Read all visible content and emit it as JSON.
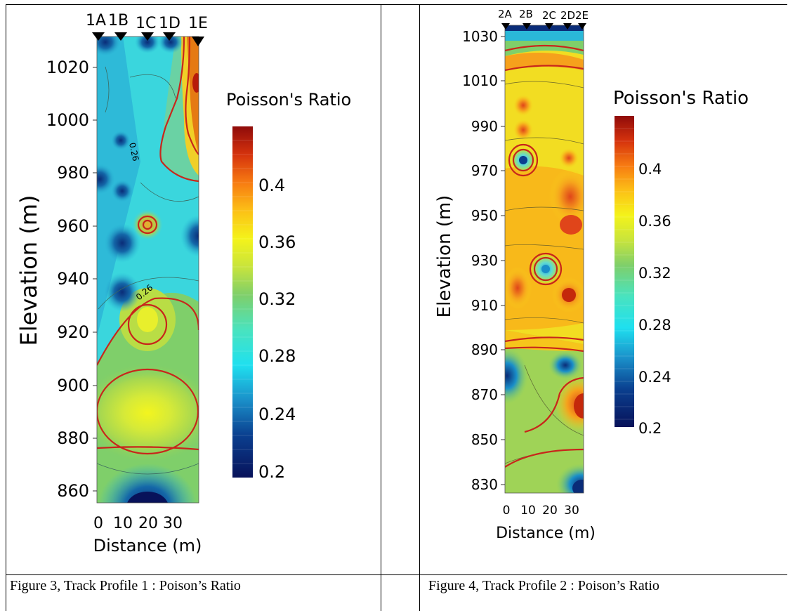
{
  "figures": [
    {
      "caption": "Figure 3, Track Profile 1 : Poison’s Ratio",
      "chart_data": {
        "type": "heatmap",
        "title": "",
        "xlabel": "Distance (m)",
        "ylabel": "Elevation (m)",
        "xlim": [
          0,
          37
        ],
        "ylim": [
          855,
          1031
        ],
        "x_ticks": [
          0,
          10,
          20,
          30
        ],
        "y_ticks": [
          1020,
          1000,
          980,
          960,
          940,
          920,
          900,
          880,
          860
        ],
        "stations": [
          {
            "label": "1A",
            "x": 1
          },
          {
            "label": "1B",
            "x": 9.5
          },
          {
            "label": "1C",
            "x": 19
          },
          {
            "label": "1D",
            "x": 27
          },
          {
            "label": "1E",
            "x": 36
          }
        ],
        "contour_labels": [
          {
            "text": "0.26",
            "x": 16,
            "y": 986
          },
          {
            "text": "0.26",
            "x": 19,
            "y": 941
          }
        ],
        "colorbar": {
          "title": "Poisson's Ratio",
          "range": [
            0.2,
            0.44
          ],
          "ticks": [
            "0.4",
            "0.36",
            "0.32",
            "0.28",
            "0.24",
            "0.2"
          ]
        }
      }
    },
    {
      "caption": "Figure 4, Track Profile 2 : Poison’s Ratio",
      "chart_data": {
        "type": "heatmap",
        "title": "",
        "xlabel": "Distance (m)",
        "ylabel": "Elevation (m)",
        "xlim": [
          0,
          36
        ],
        "ylim": [
          825,
          1034
        ],
        "x_ticks": [
          0,
          10,
          20,
          30
        ],
        "y_ticks": [
          1030,
          1010,
          990,
          970,
          950,
          930,
          910,
          890,
          870,
          850,
          830
        ],
        "stations": [
          {
            "label": "2A",
            "x": 1
          },
          {
            "label": "2B",
            "x": 10
          },
          {
            "label": "2C",
            "x": 20
          },
          {
            "label": "2D",
            "x": 28
          },
          {
            "label": "2E",
            "x": 35
          }
        ],
        "colorbar": {
          "title": "Poisson's Ratio",
          "range": [
            0.2,
            0.42
          ],
          "ticks": [
            "0.4",
            "0.36",
            "0.32",
            "0.28",
            "0.24",
            "0.2"
          ]
        }
      }
    }
  ]
}
